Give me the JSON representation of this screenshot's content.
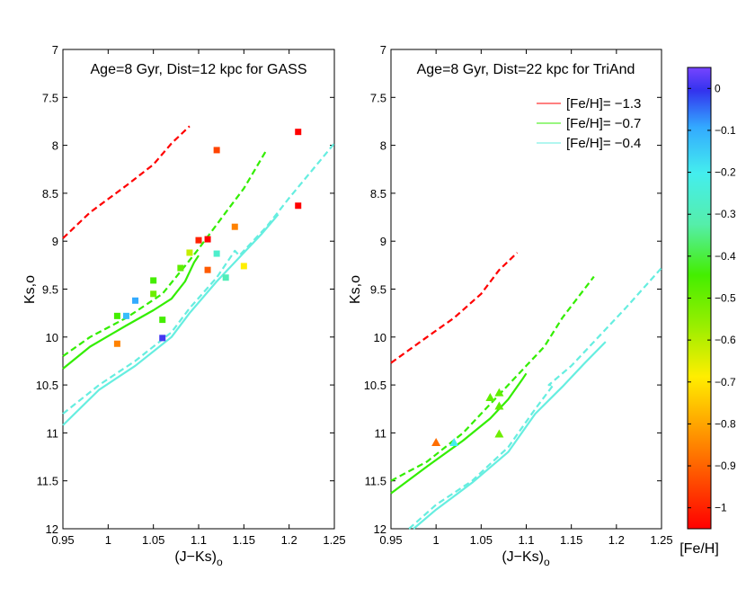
{
  "chart_data": [
    {
      "type": "scatter",
      "title": "Age=8 Gyr, Dist=12 kpc for GASS",
      "xlabel": "(J−Ks)",
      "xlabel_sub": "o",
      "ylabel": "Ks,o",
      "xlim": [
        0.95,
        1.25
      ],
      "ylim": [
        12,
        7
      ],
      "y_reversed": true,
      "xticks": [
        0.95,
        1,
        1.05,
        1.1,
        1.15,
        1.2,
        1.25
      ],
      "xtick_labels": [
        "0.95",
        "1",
        "1.05",
        "1.1",
        "1.15",
        "1.2",
        "1.25"
      ],
      "yticks": [
        7,
        7.5,
        8,
        8.5,
        9,
        9.5,
        10,
        10.5,
        11,
        11.5,
        12
      ],
      "ytick_labels": [
        "7",
        "7.5",
        "8",
        "8.5",
        "9",
        "9.5",
        "10",
        "10.5",
        "11",
        "11.5",
        "12"
      ],
      "grid": false,
      "marker": "square",
      "isochrones": [
        {
          "name": "[Fe/H]= −1.3",
          "color": "#ff0000",
          "style": "dashed",
          "x": [
            0.95,
            0.98,
            1.02,
            1.05,
            1.07,
            1.09
          ],
          "y": [
            8.97,
            8.7,
            8.42,
            8.2,
            7.98,
            7.8
          ]
        },
        {
          "name": "[Fe/H]= −0.7 (dashed)",
          "color": "#33ee00",
          "style": "dashed",
          "x": [
            0.95,
            0.98,
            1.02,
            1.06,
            1.09,
            1.1,
            1.13,
            1.15,
            1.175
          ],
          "y": [
            10.2,
            10.0,
            9.8,
            9.55,
            9.2,
            9.08,
            8.7,
            8.45,
            8.05
          ]
        },
        {
          "name": "[Fe/H]= −0.7 (solid)",
          "color": "#33ee00",
          "style": "solid",
          "x": [
            0.95,
            0.98,
            1.02,
            1.05,
            1.07,
            1.085,
            1.095,
            1.1
          ],
          "y": [
            10.33,
            10.1,
            9.88,
            9.72,
            9.6,
            9.42,
            9.22,
            9.15
          ]
        },
        {
          "name": "[Fe/H]= −0.4 (dashed)",
          "color": "#66eee0",
          "style": "dashed",
          "x": [
            0.95,
            0.99,
            1.03,
            1.07,
            1.09,
            1.12,
            1.14,
            1.145,
            1.175,
            1.2,
            1.25
          ],
          "y": [
            10.8,
            10.5,
            10.25,
            9.95,
            9.7,
            9.38,
            9.1,
            9.15,
            8.85,
            8.55,
            7.98
          ]
        },
        {
          "name": "[Fe/H]= −0.4 (solid)",
          "color": "#66eee0",
          "style": "solid",
          "x": [
            0.95,
            0.99,
            1.03,
            1.07,
            1.09,
            1.12,
            1.15,
            1.17,
            1.188
          ],
          "y": [
            10.92,
            10.55,
            10.3,
            10.0,
            9.75,
            9.42,
            9.12,
            8.92,
            8.72
          ]
        }
      ],
      "stars": [
        {
          "x": 1.01,
          "y": 9.78,
          "feh": -0.6
        },
        {
          "x": 1.01,
          "y": 10.07,
          "feh": -0.88
        },
        {
          "x": 1.02,
          "y": 9.78,
          "feh": -0.33
        },
        {
          "x": 1.03,
          "y": 9.62,
          "feh": -0.3
        },
        {
          "x": 1.05,
          "y": 9.41,
          "feh": -0.6
        },
        {
          "x": 1.05,
          "y": 9.55,
          "feh": -0.63
        },
        {
          "x": 1.06,
          "y": 9.82,
          "feh": -0.6
        },
        {
          "x": 1.06,
          "y": 10.01,
          "feh": -0.1
        },
        {
          "x": 1.08,
          "y": 9.28,
          "feh": -0.62
        },
        {
          "x": 1.09,
          "y": 9.12,
          "feh": -0.7
        },
        {
          "x": 1.1,
          "y": 8.99,
          "feh": -1.0
        },
        {
          "x": 1.11,
          "y": 8.98,
          "feh": -1.05
        },
        {
          "x": 1.11,
          "y": 9.3,
          "feh": -0.92
        },
        {
          "x": 1.12,
          "y": 8.05,
          "feh": -0.95
        },
        {
          "x": 1.12,
          "y": 9.13,
          "feh": -0.45
        },
        {
          "x": 1.13,
          "y": 9.38,
          "feh": -0.48
        },
        {
          "x": 1.14,
          "y": 8.85,
          "feh": -0.88
        },
        {
          "x": 1.15,
          "y": 9.26,
          "feh": -0.75
        },
        {
          "x": 1.21,
          "y": 7.86,
          "feh": -1.1
        },
        {
          "x": 1.21,
          "y": 8.63,
          "feh": -1.1
        }
      ]
    },
    {
      "type": "scatter",
      "title": "Age=8 Gyr, Dist=22 kpc for TriAnd",
      "xlabel": "(J−Ks)",
      "xlabel_sub": "o",
      "ylabel": "Ks,o",
      "xlim": [
        0.95,
        1.25
      ],
      "ylim": [
        12,
        7
      ],
      "y_reversed": true,
      "xticks": [
        0.95,
        1,
        1.05,
        1.1,
        1.15,
        1.2,
        1.25
      ],
      "xtick_labels": [
        "0.95",
        "1",
        "1.05",
        "1.1",
        "1.15",
        "1.2",
        "1.25"
      ],
      "yticks": [
        7,
        7.5,
        8,
        8.5,
        9,
        9.5,
        10,
        10.5,
        11,
        11.5,
        12
      ],
      "ytick_labels": [
        "7",
        "7.5",
        "8",
        "8.5",
        "9",
        "9.5",
        "10",
        "10.5",
        "11",
        "11.5",
        "12"
      ],
      "grid": false,
      "marker": "triangle",
      "legend": {
        "position": "top-right",
        "entries": [
          {
            "label": "[Fe/H]= −1.3",
            "color": "#ff0000"
          },
          {
            "label": "[Fe/H]= −0.7",
            "color": "#33ee00"
          },
          {
            "label": "[Fe/H]= −0.4",
            "color": "#66eee0"
          }
        ]
      },
      "isochrones": [
        {
          "name": "[Fe/H]= −1.3",
          "color": "#ff0000",
          "style": "dashed",
          "x": [
            0.95,
            0.99,
            1.02,
            1.05,
            1.07,
            1.09
          ],
          "y": [
            10.27,
            10.0,
            9.8,
            9.55,
            9.3,
            9.12
          ]
        },
        {
          "name": "[Fe/H]= −0.7 (dashed)",
          "color": "#33ee00",
          "style": "dashed",
          "x": [
            0.95,
            0.99,
            1.03,
            1.07,
            1.1,
            1.12,
            1.14,
            1.175
          ],
          "y": [
            11.5,
            11.3,
            11.0,
            10.6,
            10.3,
            10.1,
            9.8,
            9.37
          ]
        },
        {
          "name": "[Fe/H]= −0.7 (solid)",
          "color": "#33ee00",
          "style": "solid",
          "x": [
            0.95,
            0.99,
            1.03,
            1.06,
            1.08,
            1.095,
            1.1
          ],
          "y": [
            11.63,
            11.35,
            11.08,
            10.85,
            10.65,
            10.45,
            10.38
          ]
        },
        {
          "name": "[Fe/H]= −0.4 (dashed)",
          "color": "#66eee0",
          "style": "dashed",
          "x": [
            0.97,
            1.0,
            1.04,
            1.08,
            1.11,
            1.13,
            1.125,
            1.15,
            1.18,
            1.21,
            1.25
          ],
          "y": [
            12.0,
            11.75,
            11.5,
            11.15,
            10.75,
            10.5,
            10.5,
            10.3,
            10.0,
            9.7,
            9.28
          ]
        },
        {
          "name": "[Fe/H]= −0.4 (solid)",
          "color": "#66eee0",
          "style": "solid",
          "x": [
            0.975,
            1.0,
            1.04,
            1.08,
            1.11,
            1.14,
            1.165,
            1.188
          ],
          "y": [
            12.0,
            11.8,
            11.52,
            11.2,
            10.8,
            10.52,
            10.27,
            10.05
          ]
        }
      ],
      "stars": [
        {
          "x": 1.0,
          "y": 11.1,
          "feh": -0.9
        },
        {
          "x": 1.02,
          "y": 11.1,
          "feh": -0.4
        },
        {
          "x": 1.06,
          "y": 10.63,
          "feh": -0.62
        },
        {
          "x": 1.07,
          "y": 10.58,
          "feh": -0.62
        },
        {
          "x": 1.07,
          "y": 10.72,
          "feh": -0.62
        },
        {
          "x": 1.07,
          "y": 11.01,
          "feh": -0.63
        }
      ]
    }
  ],
  "colorbar": {
    "label": "[Fe/H]",
    "range": [
      -1.05,
      0.05
    ],
    "ticks": [
      0,
      -0.1,
      -0.2,
      -0.3,
      -0.4,
      -0.5,
      -0.6,
      -0.7,
      -0.8,
      -0.9,
      -1
    ],
    "tick_labels": [
      "0",
      "−0.1",
      "−0.2",
      "−0.3",
      "−0.4",
      "−0.5",
      "−0.6",
      "−0.7",
      "−0.8",
      "−0.9",
      "−1"
    ]
  }
}
